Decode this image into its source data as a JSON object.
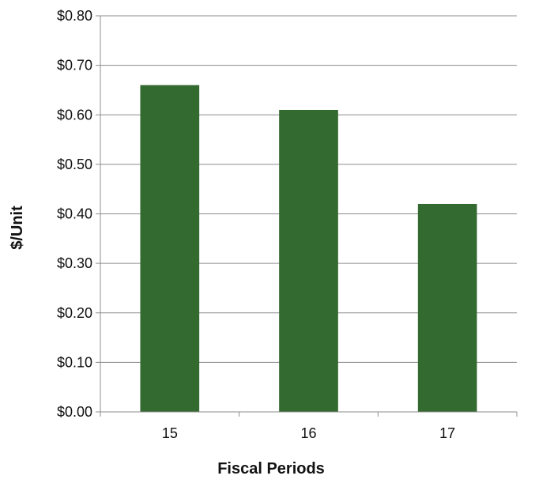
{
  "colors": {
    "bar": "#336a2f",
    "gridline": "#8c8c8c",
    "axis": "#8c8c8c",
    "background": "#ffffff"
  },
  "chart_data": {
    "type": "bar",
    "title": "",
    "xlabel": "Fiscal Periods",
    "ylabel": "$/Unit",
    "categories": [
      "15",
      "16",
      "17"
    ],
    "series": [
      {
        "values": [
          0.66,
          0.61,
          0.42
        ]
      }
    ],
    "ylim": [
      0,
      0.8
    ],
    "yticks": [
      0,
      0.1,
      0.2,
      0.3,
      0.4,
      0.5,
      0.6,
      0.7,
      0.8
    ],
    "ytick_labels": [
      "$0.00",
      "$0.10",
      "$0.20",
      "$0.30",
      "$0.40",
      "$0.50",
      "$0.60",
      "$0.70",
      "$0.80"
    ],
    "grid": true,
    "legend": "none"
  }
}
